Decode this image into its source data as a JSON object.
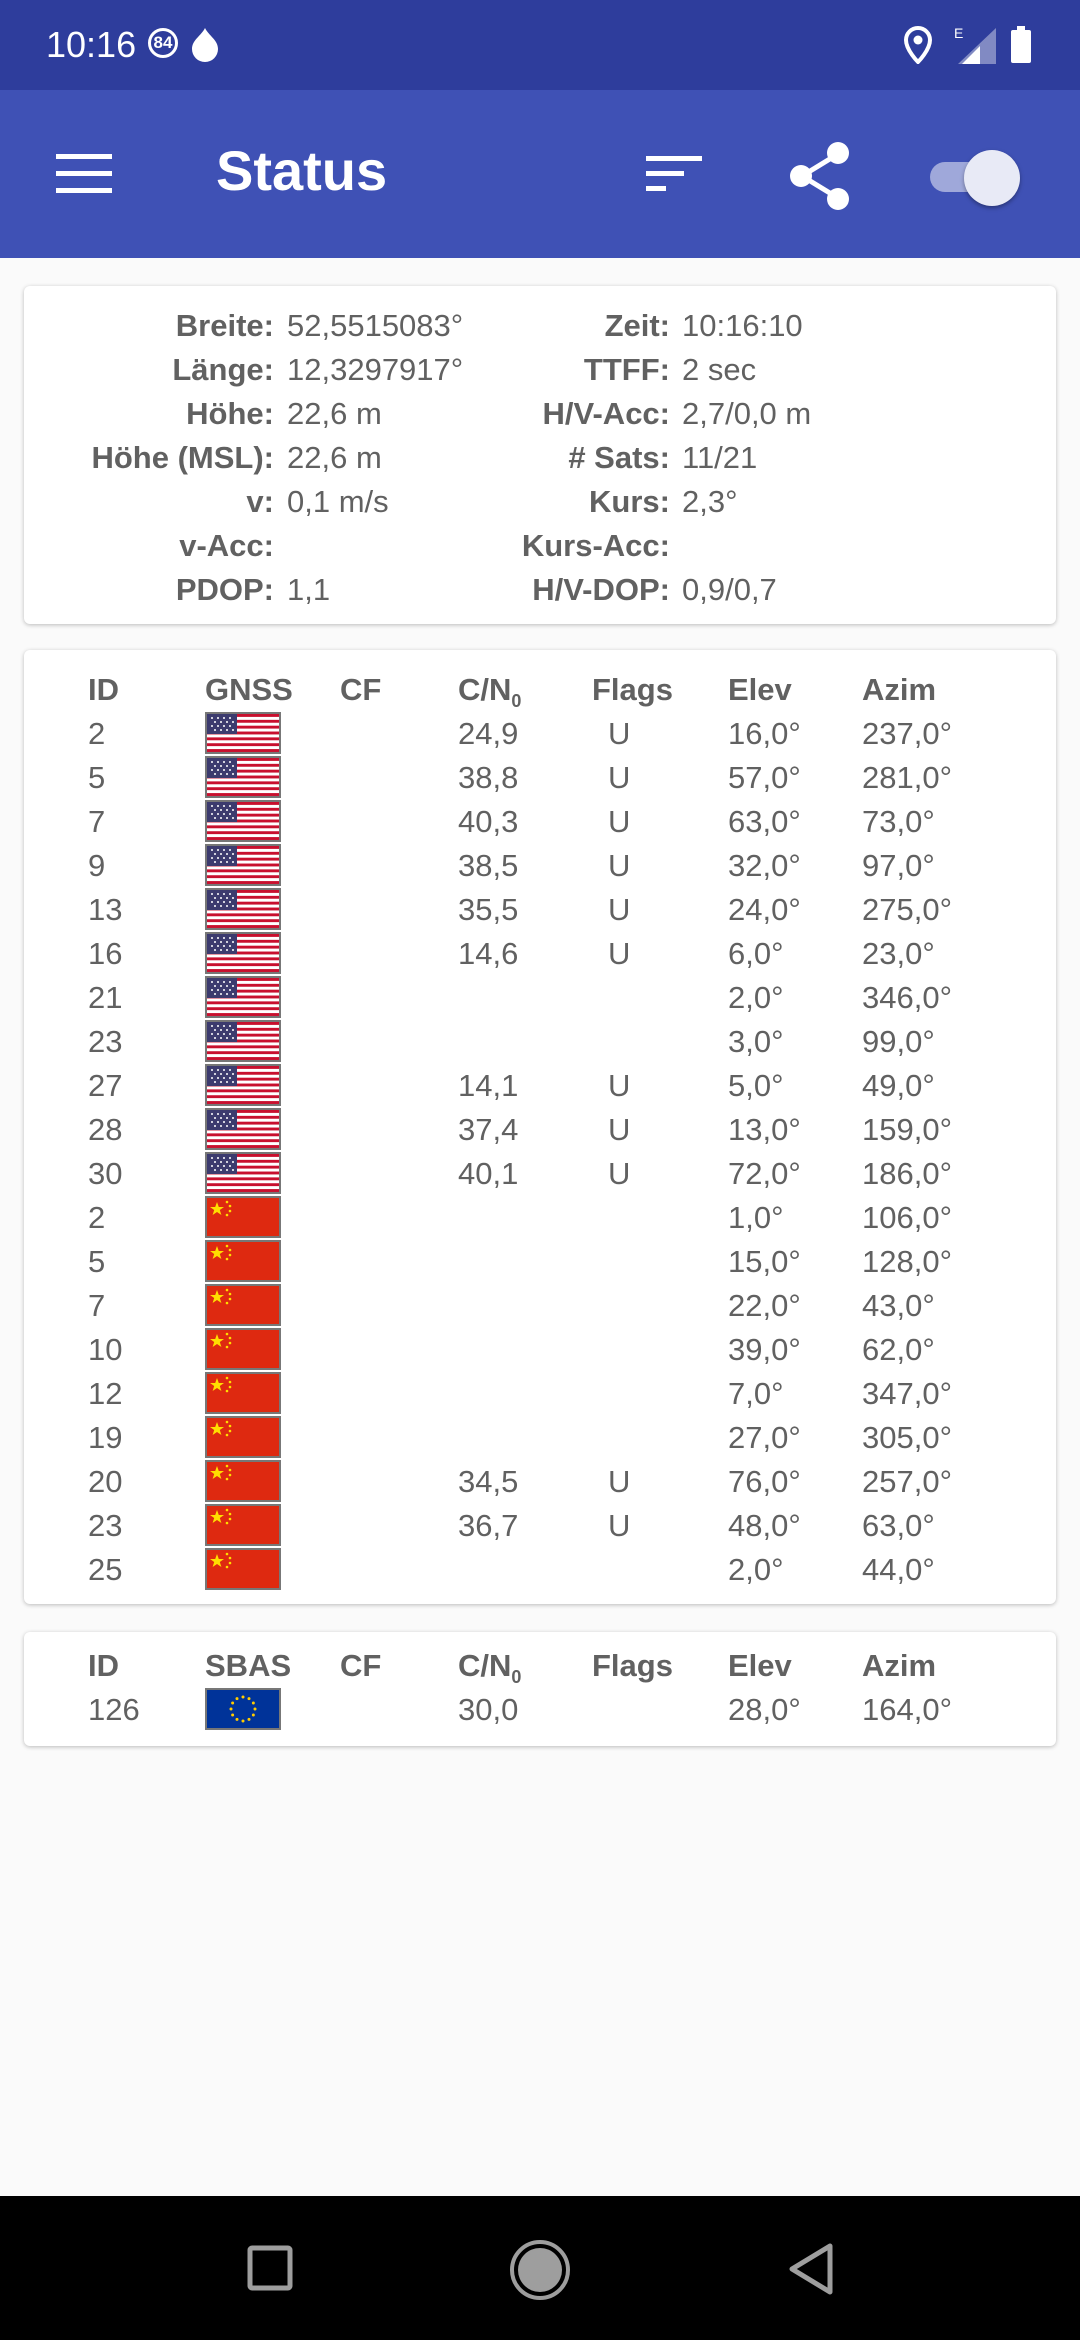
{
  "status_bar": {
    "time": "10:16",
    "badge": "84",
    "network_letter": "E"
  },
  "app_bar": {
    "title": "Status"
  },
  "info": {
    "rows": [
      {
        "k1": "Breite:",
        "v1": "52,5515083°",
        "k2": "Zeit:",
        "v2": "10:16:10"
      },
      {
        "k1": "Länge:",
        "v1": "12,3297917°",
        "k2": "TTFF:",
        "v2": "2 sec"
      },
      {
        "k1": "Höhe:",
        "v1": "22,6 m",
        "k2": "H/V-Acc:",
        "v2": "2,7/0,0 m"
      },
      {
        "k1": "Höhe (MSL):",
        "v1": "22,6 m",
        "k2": "# Sats:",
        "v2": "11/21"
      },
      {
        "k1": "v:",
        "v1": "0,1 m/s",
        "k2": "Kurs:",
        "v2": "2,3°"
      },
      {
        "k1": "v-Acc:",
        "v1": "",
        "k2": "Kurs-Acc:",
        "v2": ""
      },
      {
        "k1": "PDOP:",
        "v1": "1,1",
        "k2": "H/V-DOP:",
        "v2": "0,9/0,7"
      }
    ]
  },
  "gnss_table": {
    "headers": {
      "id": "ID",
      "system": "GNSS",
      "cf": "CF",
      "cn_main": "C/N",
      "cn_sub": "0",
      "flags": "Flags",
      "elev": "Elev",
      "azim": "Azim"
    },
    "rows": [
      {
        "id": "2",
        "flag": "us-flag",
        "cn": "24,9",
        "flags": "U",
        "elev": "16,0°",
        "azim": "237,0°"
      },
      {
        "id": "5",
        "flag": "us-flag",
        "cn": "38,8",
        "flags": "U",
        "elev": "57,0°",
        "azim": "281,0°"
      },
      {
        "id": "7",
        "flag": "us-flag",
        "cn": "40,3",
        "flags": "U",
        "elev": "63,0°",
        "azim": "73,0°"
      },
      {
        "id": "9",
        "flag": "us-flag",
        "cn": "38,5",
        "flags": "U",
        "elev": "32,0°",
        "azim": "97,0°"
      },
      {
        "id": "13",
        "flag": "us-flag",
        "cn": "35,5",
        "flags": "U",
        "elev": "24,0°",
        "azim": "275,0°"
      },
      {
        "id": "16",
        "flag": "us-flag",
        "cn": "14,6",
        "flags": "U",
        "elev": "6,0°",
        "azim": "23,0°"
      },
      {
        "id": "21",
        "flag": "us-flag",
        "cn": "",
        "flags": "",
        "elev": "2,0°",
        "azim": "346,0°"
      },
      {
        "id": "23",
        "flag": "us-flag",
        "cn": "",
        "flags": "",
        "elev": "3,0°",
        "azim": "99,0°"
      },
      {
        "id": "27",
        "flag": "us-flag",
        "cn": "14,1",
        "flags": "U",
        "elev": "5,0°",
        "azim": "49,0°"
      },
      {
        "id": "28",
        "flag": "us-flag",
        "cn": "37,4",
        "flags": "U",
        "elev": "13,0°",
        "azim": "159,0°"
      },
      {
        "id": "30",
        "flag": "us-flag",
        "cn": "40,1",
        "flags": "U",
        "elev": "72,0°",
        "azim": "186,0°"
      },
      {
        "id": "2",
        "flag": "cn-flag",
        "cn": "",
        "flags": "",
        "elev": "1,0°",
        "azim": "106,0°"
      },
      {
        "id": "5",
        "flag": "cn-flag",
        "cn": "",
        "flags": "",
        "elev": "15,0°",
        "azim": "128,0°"
      },
      {
        "id": "7",
        "flag": "cn-flag",
        "cn": "",
        "flags": "",
        "elev": "22,0°",
        "azim": "43,0°"
      },
      {
        "id": "10",
        "flag": "cn-flag",
        "cn": "",
        "flags": "",
        "elev": "39,0°",
        "azim": "62,0°"
      },
      {
        "id": "12",
        "flag": "cn-flag",
        "cn": "",
        "flags": "",
        "elev": "7,0°",
        "azim": "347,0°"
      },
      {
        "id": "19",
        "flag": "cn-flag",
        "cn": "",
        "flags": "",
        "elev": "27,0°",
        "azim": "305,0°"
      },
      {
        "id": "20",
        "flag": "cn-flag",
        "cn": "34,5",
        "flags": "U",
        "elev": "76,0°",
        "azim": "257,0°"
      },
      {
        "id": "23",
        "flag": "cn-flag",
        "cn": "36,7",
        "flags": "U",
        "elev": "48,0°",
        "azim": "63,0°"
      },
      {
        "id": "25",
        "flag": "cn-flag",
        "cn": "",
        "flags": "",
        "elev": "2,0°",
        "azim": "44,0°"
      }
    ]
  },
  "sbas_table": {
    "headers": {
      "id": "ID",
      "system": "SBAS",
      "cf": "CF",
      "cn_main": "C/N",
      "cn_sub": "0",
      "flags": "Flags",
      "elev": "Elev",
      "azim": "Azim"
    },
    "rows": [
      {
        "id": "126",
        "flag": "eu-flag",
        "cn": "30,0",
        "flags": "",
        "elev": "28,0°",
        "azim": "164,0°"
      }
    ]
  },
  "colors": {
    "status_bar": "#2e3d9c",
    "app_bar": "#3f51b5",
    "text": "#616161"
  }
}
